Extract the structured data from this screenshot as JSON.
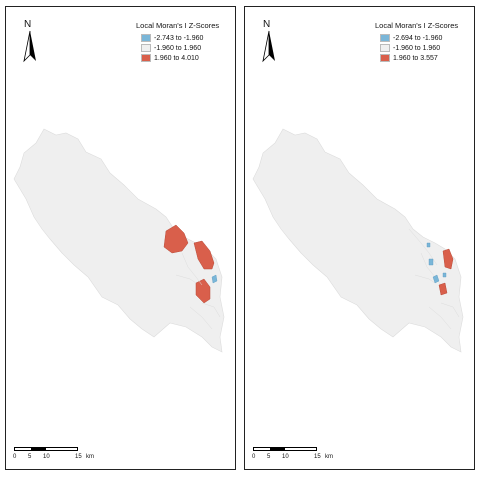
{
  "panels": [
    {
      "legend": {
        "title": "Local Moran's I Z-Scores",
        "items": [
          {
            "label": "-2.743 to -1.960",
            "color": "#7ab6d8"
          },
          {
            "label": "-1.960 to 1.960",
            "color": "#f0f0f0"
          },
          {
            "label": "1.960 to 4.010",
            "color": "#d95f4b"
          }
        ]
      },
      "north": "N",
      "scale": {
        "ticks": [
          "0",
          "5",
          "10",
          "15",
          "km"
        ]
      }
    },
    {
      "legend": {
        "title": "Local Moran's I Z-Scores",
        "items": [
          {
            "label": "-2.694 to -1.960",
            "color": "#7ab6d8"
          },
          {
            "label": "-1.960 to 1.960",
            "color": "#f0f0f0"
          },
          {
            "label": "1.960 to 3.557",
            "color": "#d95f4b"
          }
        ]
      },
      "north": "N",
      "scale": {
        "ticks": [
          "0",
          "5",
          "10",
          "15",
          "km"
        ]
      }
    }
  ]
}
